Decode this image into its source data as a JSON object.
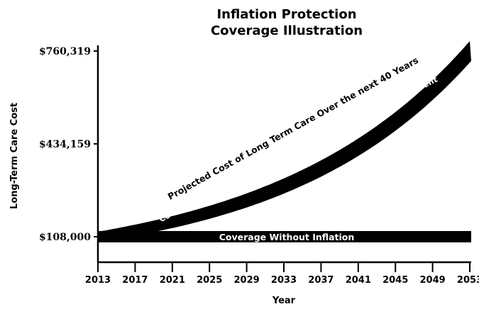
{
  "chart_data": {
    "type": "area",
    "title_lines": [
      "Inflation Protection",
      "Coverage Illustration"
    ],
    "xlabel": "Year",
    "ylabel": "Long-Term Care Cost",
    "x_ticks": [
      "2013",
      "2017",
      "2021",
      "2025",
      "2029",
      "2033",
      "2037",
      "2041",
      "2045",
      "2049",
      "2053"
    ],
    "y_ticks": [
      {
        "value": 108000,
        "label": "$108,000"
      },
      {
        "value": 434159,
        "label": "$434,159"
      },
      {
        "value": 760319,
        "label": "$760,319"
      }
    ],
    "xlim": [
      2013,
      2053
    ],
    "series": [
      {
        "name": "Coverage Without Inflation",
        "x": [
          2013,
          2053
        ],
        "values": [
          108000,
          108000
        ]
      },
      {
        "name": "Coverage With 5% Compound Inflation Protection - Lifetime Benefit",
        "growth_rate": 0.05,
        "x0": 2013,
        "y0": 108000
      },
      {
        "name": "Projected Cost of Long Term Care Over the next 40 Years",
        "growth_rate": 0.05,
        "x0": 2013,
        "y0": 108000
      }
    ]
  }
}
